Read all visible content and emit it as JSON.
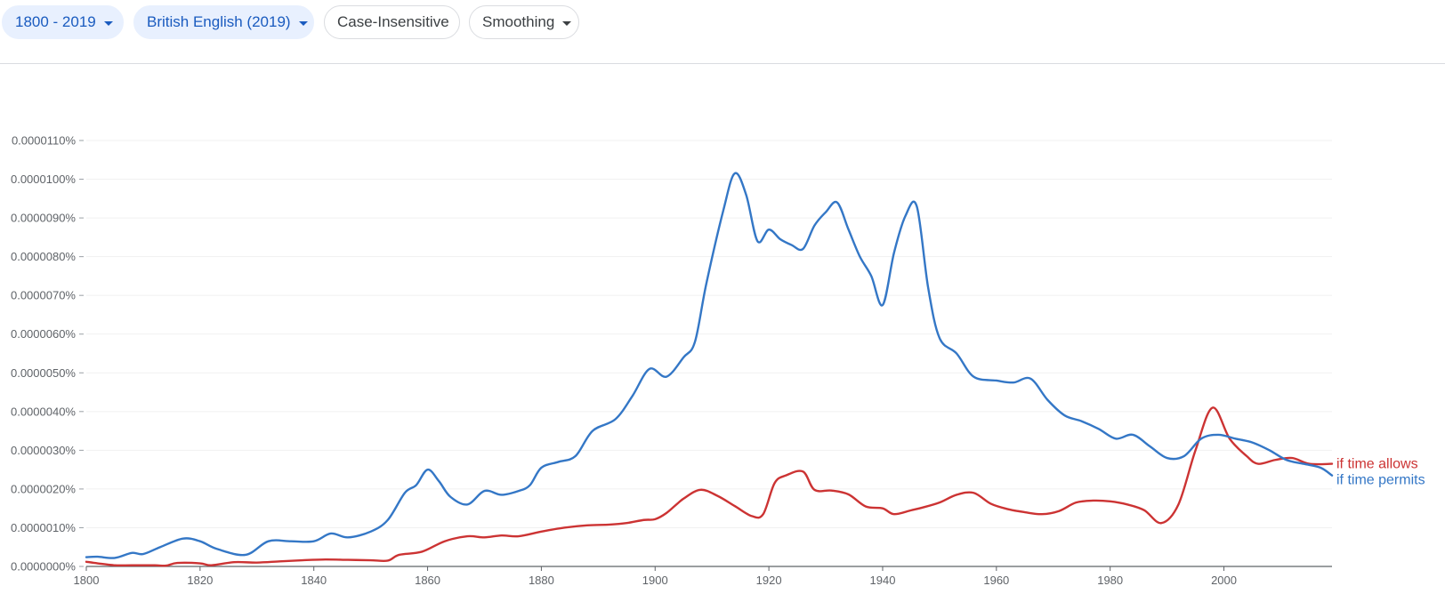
{
  "toolbar": {
    "year_range": "1800 - 2019",
    "corpus": "British English (2019)",
    "case": "Case-Insensitive",
    "smoothing": "Smoothing"
  },
  "colors": {
    "if_time_allows": "#cc3333",
    "if_time_permits": "#3477c6",
    "chip_selected_bg": "#e8f0fe",
    "chip_selected_text": "#1a5bbf",
    "grid": "#f1f1f1",
    "axis": "#5f6368"
  },
  "chart_data": {
    "type": "line",
    "title": "",
    "xlabel": "",
    "ylabel": "",
    "xlim": [
      1800,
      2019
    ],
    "ylim": [
      0,
      1.1e-05
    ],
    "x_ticks": [
      1800,
      1820,
      1840,
      1860,
      1880,
      1900,
      1920,
      1940,
      1960,
      1980,
      2000
    ],
    "x_tick_labels": [
      "1800",
      "1820",
      "1840",
      "1860",
      "1880",
      "1900",
      "1920",
      "1940",
      "1960",
      "1980",
      "2000"
    ],
    "y_ticks": [
      0,
      1e-06,
      2e-06,
      3e-06,
      4e-06,
      5e-06,
      6e-06,
      7e-06,
      8e-06,
      9e-06,
      1e-05,
      1.1e-05
    ],
    "y_tick_labels": [
      "0.0000000%",
      "0.0000010%",
      "0.0000020%",
      "0.0000030%",
      "0.0000040%",
      "0.0000050%",
      "0.0000060%",
      "0.0000070%",
      "0.0000080%",
      "0.0000090%",
      "0.0000100%",
      "0.0000110%"
    ],
    "grid": true,
    "legend": "inline-right",
    "series": [
      {
        "name": "if time allows",
        "color": "#cc3333",
        "x": [
          1800,
          1802,
          1805,
          1808,
          1812,
          1814,
          1816,
          1820,
          1822,
          1826,
          1830,
          1834,
          1838,
          1842,
          1846,
          1850,
          1853,
          1855,
          1859,
          1863,
          1867,
          1870,
          1873,
          1876,
          1880,
          1884,
          1888,
          1892,
          1895,
          1898,
          1900,
          1902,
          1905,
          1908,
          1911,
          1914,
          1917,
          1919,
          1921,
          1923,
          1926,
          1928,
          1931,
          1934,
          1937,
          1940,
          1942,
          1945,
          1947,
          1950,
          1953,
          1956,
          1959,
          1962,
          1965,
          1968,
          1971,
          1974,
          1977,
          1980,
          1983,
          1986,
          1989,
          1992,
          1995,
          1998,
          2001,
          2004,
          2006,
          2009,
          2012,
          2015,
          2019
        ],
        "values": [
          1.2e-07,
          8e-08,
          3e-08,
          3e-08,
          3e-08,
          2e-08,
          9e-08,
          8e-08,
          3e-08,
          1.1e-07,
          1e-07,
          1.3e-07,
          1.6e-07,
          1.8e-07,
          1.7e-07,
          1.6e-07,
          1.5e-07,
          3e-07,
          3.8e-07,
          6.5e-07,
          7.8e-07,
          7.5e-07,
          8e-07,
          7.8e-07,
          9e-07,
          1e-06,
          1.06e-06,
          1.08e-06,
          1.12e-06,
          1.2e-06,
          1.22e-06,
          1.38e-06,
          1.75e-06,
          1.98e-06,
          1.82e-06,
          1.56e-06,
          1.3e-06,
          1.35e-06,
          2.15e-06,
          2.35e-06,
          2.45e-06,
          1.98e-06,
          1.96e-06,
          1.86e-06,
          1.55e-06,
          1.5e-06,
          1.35e-06,
          1.45e-06,
          1.52e-06,
          1.65e-06,
          1.85e-06,
          1.9e-06,
          1.62e-06,
          1.48e-06,
          1.4e-06,
          1.35e-06,
          1.43e-06,
          1.65e-06,
          1.7e-06,
          1.68e-06,
          1.6e-06,
          1.45e-06,
          1.12e-06,
          1.6e-06,
          3e-06,
          4.1e-06,
          3.3e-06,
          2.85e-06,
          2.65e-06,
          2.75e-06,
          2.8e-06,
          2.65e-06,
          2.65e-06
        ]
      },
      {
        "name": "if time permits",
        "color": "#3477c6",
        "x": [
          1800,
          1802,
          1805,
          1808,
          1810,
          1813,
          1817,
          1820,
          1823,
          1828,
          1832,
          1836,
          1840,
          1843,
          1846,
          1850,
          1853,
          1856,
          1858,
          1860,
          1862,
          1864,
          1867,
          1870,
          1873,
          1876,
          1878,
          1880,
          1883,
          1886,
          1889,
          1893,
          1896,
          1899,
          1902,
          1905,
          1907,
          1909,
          1912,
          1914,
          1916,
          1918,
          1920,
          1922,
          1924,
          1926,
          1928,
          1930,
          1932,
          1934,
          1936,
          1938,
          1940,
          1942,
          1944,
          1946,
          1948,
          1950,
          1953,
          1956,
          1960,
          1963,
          1966,
          1969,
          1972,
          1975,
          1978,
          1981,
          1984,
          1987,
          1990,
          1993,
          1996,
          1999,
          2002,
          2005,
          2008,
          2011,
          2014,
          2017,
          2019
        ],
        "values": [
          2.4e-07,
          2.5e-07,
          2.2e-07,
          3.5e-07,
          3.2e-07,
          5e-07,
          7.2e-07,
          6.5e-07,
          4.5e-07,
          3e-07,
          6.5e-07,
          6.5e-07,
          6.5e-07,
          8.5e-07,
          7.5e-07,
          9e-07,
          1.2e-06,
          1.9e-06,
          2.1e-06,
          2.5e-06,
          2.2e-06,
          1.8e-06,
          1.6e-06,
          1.95e-06,
          1.85e-06,
          1.95e-06,
          2.1e-06,
          2.55e-06,
          2.7e-06,
          2.85e-06,
          3.5e-06,
          3.8e-06,
          4.4e-06,
          5.1e-06,
          4.9e-06,
          5.4e-06,
          5.8e-06,
          7.3e-06,
          9.2e-06,
          1.015e-05,
          9.6e-06,
          8.4e-06,
          8.7e-06,
          8.45e-06,
          8.3e-06,
          8.2e-06,
          8.8e-06,
          9.15e-06,
          9.4e-06,
          8.7e-06,
          8e-06,
          7.5e-06,
          6.75e-06,
          8.1e-06,
          9.05e-06,
          9.3e-06,
          7.2e-06,
          5.9e-06,
          5.5e-06,
          4.9e-06,
          4.8e-06,
          4.75e-06,
          4.85e-06,
          4.3e-06,
          3.9e-06,
          3.75e-06,
          3.55e-06,
          3.3e-06,
          3.4e-06,
          3.1e-06,
          2.8e-06,
          2.85e-06,
          3.3e-06,
          3.4e-06,
          3.3e-06,
          3.2e-06,
          3e-06,
          2.75e-06,
          2.65e-06,
          2.55e-06,
          2.35e-06
        ]
      }
    ]
  }
}
